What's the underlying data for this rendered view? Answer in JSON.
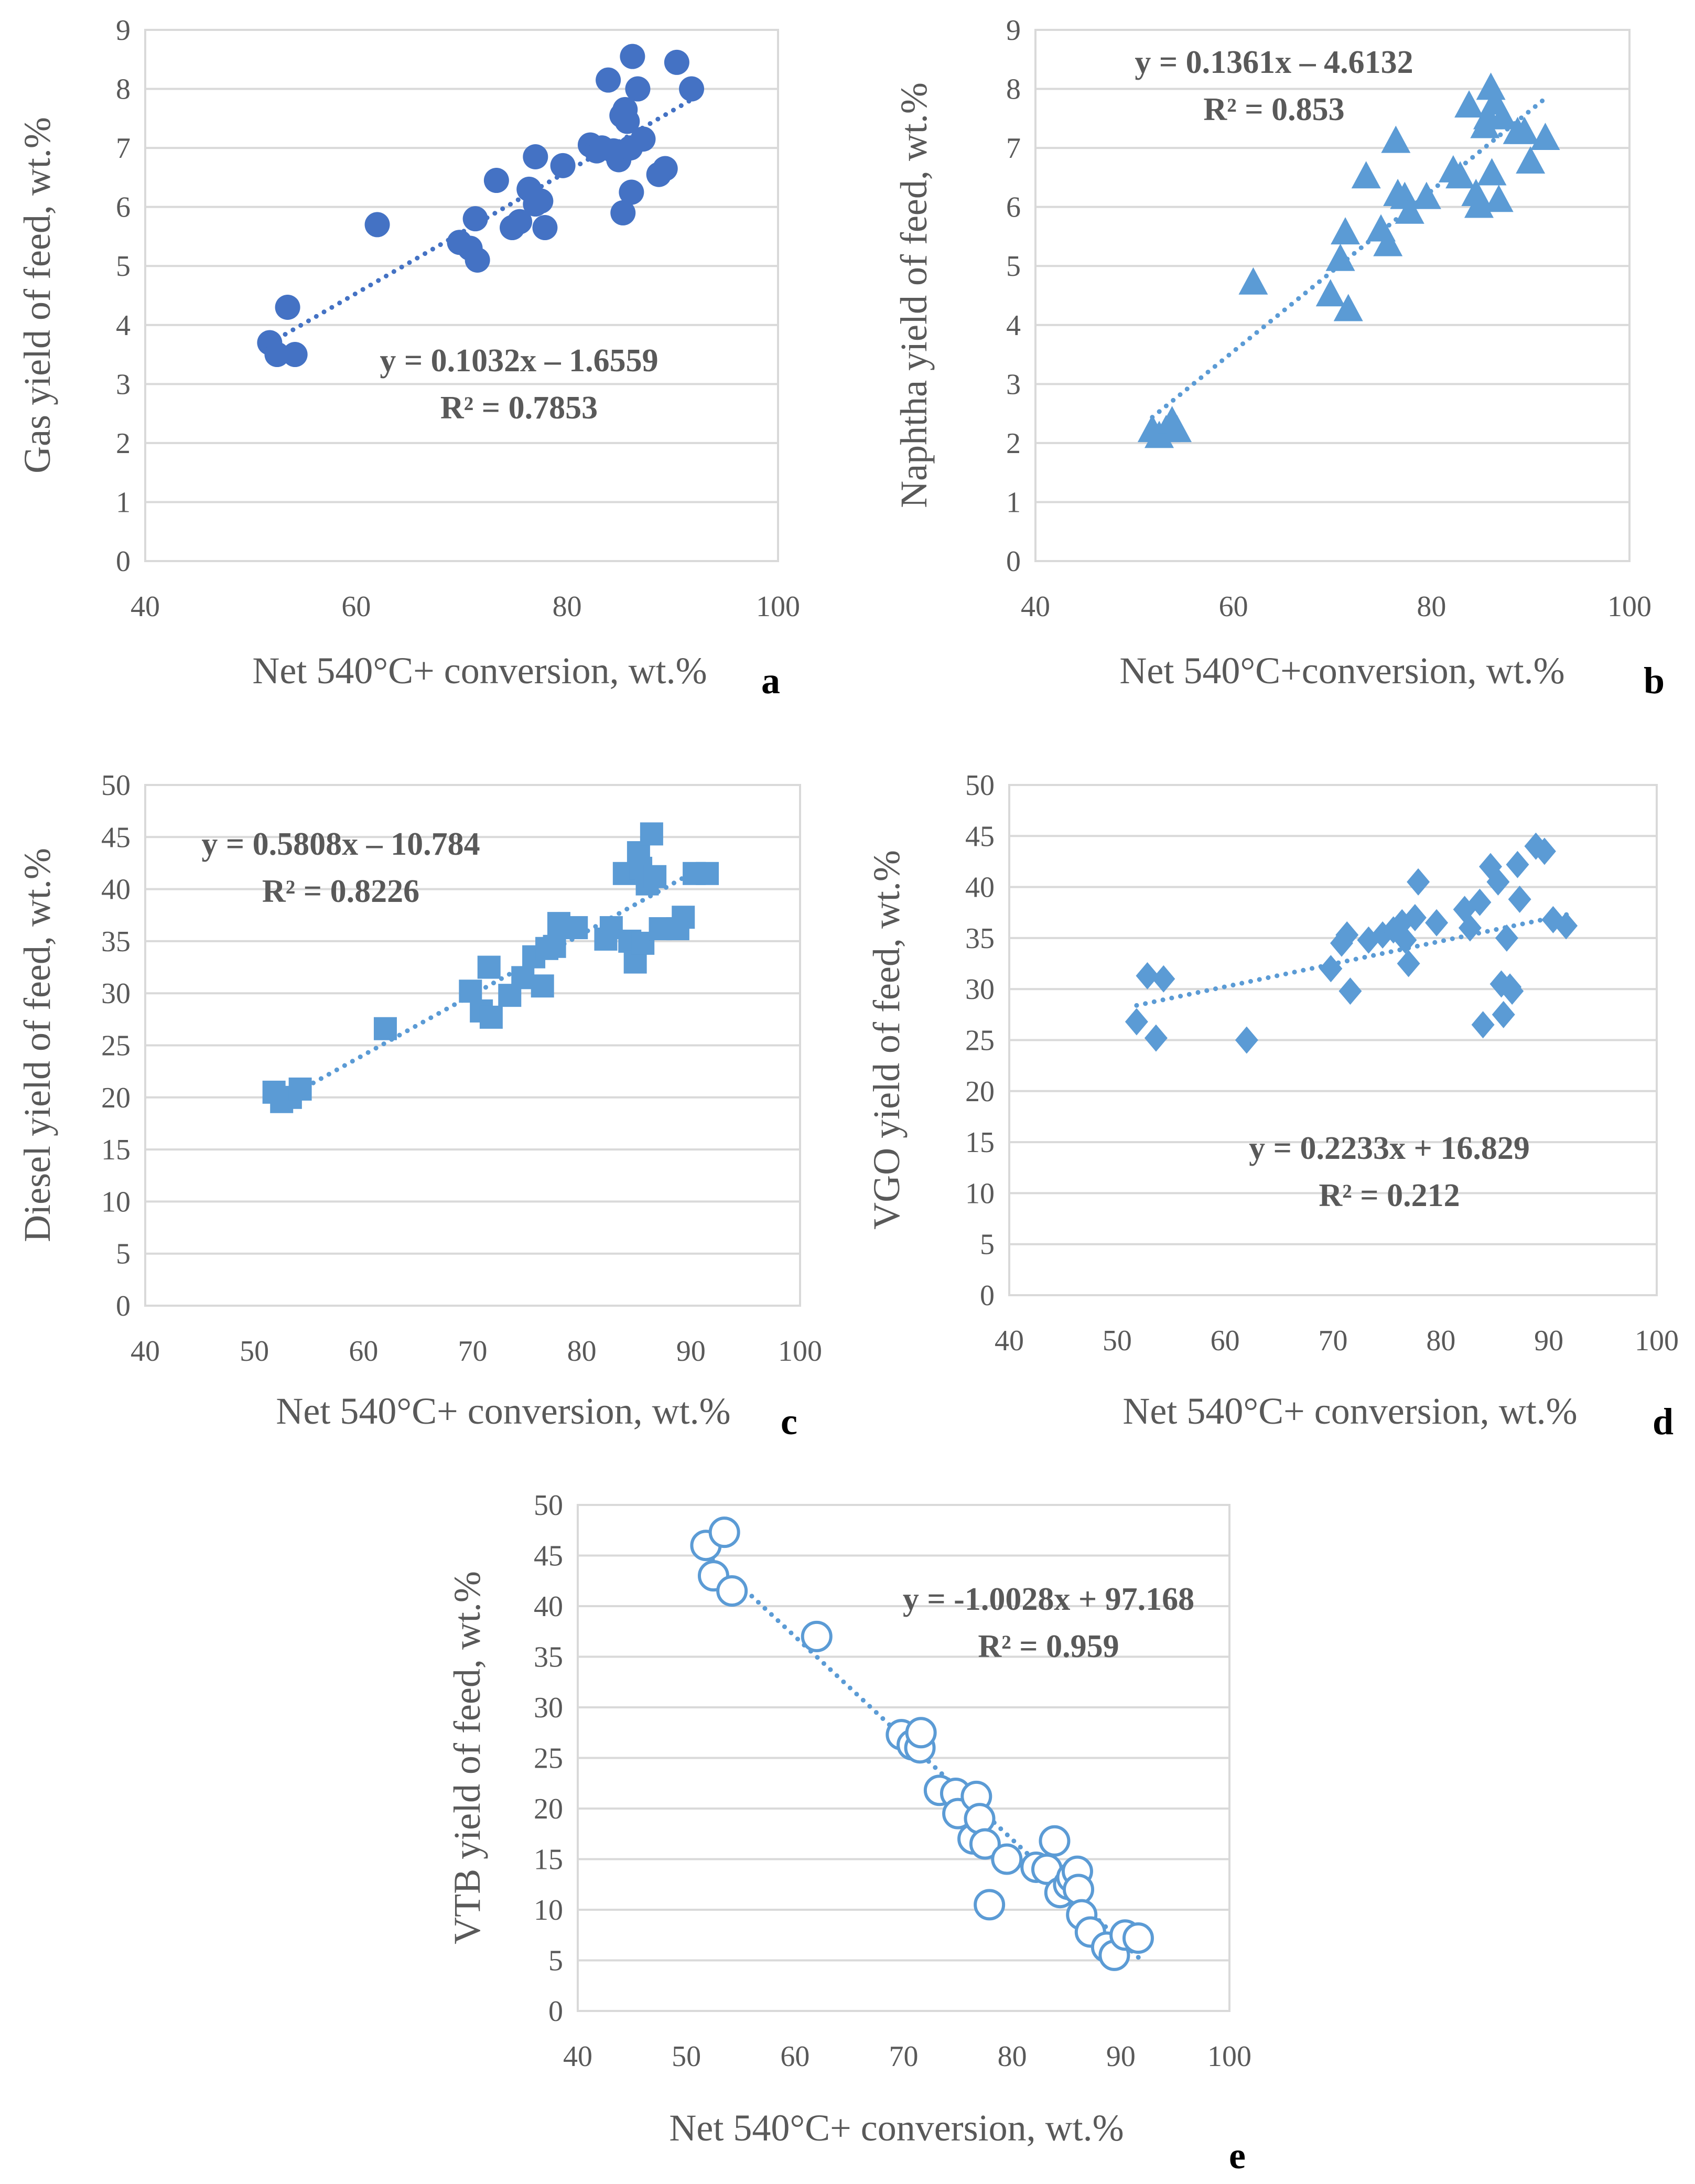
{
  "chart_data": [
    {
      "type": "scatter",
      "panel_label": "a",
      "xlabel": "Net 540°C+ conversion, wt.%",
      "ylabel": "Gas yield of feed, wt.%",
      "xlim": [
        40,
        100
      ],
      "ylim": [
        0,
        9
      ],
      "xticks": [
        40,
        60,
        80,
        100
      ],
      "yticks": [
        0,
        1,
        2,
        3,
        4,
        5,
        6,
        7,
        8,
        9
      ],
      "grid": "horizontal",
      "marker": "circle-filled",
      "color": "#4472C4",
      "trendline": {
        "slope": 0.1032,
        "intercept": -1.6559,
        "x_range": [
          51.8,
          91.8
        ]
      },
      "equation": "y = 0.1032x – 1.6559",
      "r2": "R² = 0.7853",
      "points": [
        [
          51.8,
          3.7
        ],
        [
          52.5,
          3.5
        ],
        [
          53.5,
          4.3
        ],
        [
          54.2,
          3.5
        ],
        [
          62,
          5.7
        ],
        [
          69.8,
          5.4
        ],
        [
          70.8,
          5.3
        ],
        [
          71.3,
          5.8
        ],
        [
          71.5,
          5.1
        ],
        [
          73.3,
          6.45
        ],
        [
          74.8,
          5.65
        ],
        [
          75.5,
          5.75
        ],
        [
          76.4,
          6.3
        ],
        [
          77.0,
          6.05
        ],
        [
          77.0,
          6.85
        ],
        [
          77.5,
          6.1
        ],
        [
          77.9,
          5.65
        ],
        [
          79.6,
          6.7
        ],
        [
          82.2,
          7.05
        ],
        [
          82.8,
          6.95
        ],
        [
          83.3,
          7.0
        ],
        [
          83.9,
          8.15
        ],
        [
          84.4,
          6.95
        ],
        [
          84.9,
          6.8
        ],
        [
          85.2,
          7.55
        ],
        [
          85.3,
          5.9
        ],
        [
          85.5,
          7.65
        ],
        [
          85.7,
          7.45
        ],
        [
          86.0,
          7.0
        ],
        [
          86.2,
          8.55
        ],
        [
          86.1,
          6.25
        ],
        [
          86.7,
          8.0
        ],
        [
          87.2,
          7.15
        ],
        [
          88.7,
          6.55
        ],
        [
          89.3,
          6.65
        ],
        [
          90.4,
          8.45
        ],
        [
          91.8,
          8.0
        ]
      ]
    },
    {
      "type": "scatter",
      "panel_label": "b",
      "xlabel": "Net 540°C+conversion, wt.%",
      "ylabel": "Naphtha yield of feed, wt.%",
      "xlim": [
        40,
        100
      ],
      "ylim": [
        0,
        9
      ],
      "xticks": [
        40,
        60,
        80,
        100
      ],
      "yticks": [
        0,
        1,
        2,
        3,
        4,
        5,
        6,
        7,
        8,
        9
      ],
      "grid": "horizontal",
      "marker": "triangle",
      "color": "#5B9BD5",
      "trendline": {
        "slope": 0.1361,
        "intercept": -4.6132,
        "x_range": [
          51.8,
          91.8
        ]
      },
      "equation": "y = 0.1361x – 4.6132",
      "r2": "R² = 0.853",
      "points": [
        [
          51.8,
          2.2
        ],
        [
          52.5,
          2.1
        ],
        [
          53.2,
          2.2
        ],
        [
          53.8,
          2.35
        ],
        [
          54.3,
          2.2
        ],
        [
          62,
          4.7
        ],
        [
          69.8,
          4.5
        ],
        [
          70.8,
          5.1
        ],
        [
          71.3,
          5.55
        ],
        [
          71.6,
          4.25
        ],
        [
          73.4,
          6.5
        ],
        [
          74.9,
          5.6
        ],
        [
          75.6,
          5.35
        ],
        [
          76.4,
          7.1
        ],
        [
          76.6,
          6.2
        ],
        [
          77.3,
          6.15
        ],
        [
          77.8,
          5.9
        ],
        [
          79.5,
          6.15
        ],
        [
          82.2,
          6.6
        ],
        [
          82.9,
          6.5
        ],
        [
          83.8,
          7.7
        ],
        [
          84.5,
          6.2
        ],
        [
          84.8,
          6.0
        ],
        [
          85.4,
          7.35
        ],
        [
          85.7,
          7.5
        ],
        [
          86.0,
          8.0
        ],
        [
          86.1,
          6.55
        ],
        [
          86.4,
          7.75
        ],
        [
          86.8,
          6.1
        ],
        [
          87.2,
          7.5
        ],
        [
          88.7,
          7.25
        ],
        [
          89.4,
          7.25
        ],
        [
          90.0,
          6.75
        ],
        [
          91.5,
          7.15
        ]
      ]
    },
    {
      "type": "scatter",
      "panel_label": "c",
      "xlabel": "Net 540°C+ conversion, wt.%",
      "ylabel": "Diesel yield of feed, wt.%",
      "xlim": [
        40,
        100
      ],
      "ylim": [
        0,
        50
      ],
      "xticks": [
        40,
        50,
        60,
        70,
        80,
        90,
        100
      ],
      "yticks": [
        0,
        5,
        10,
        15,
        20,
        25,
        30,
        35,
        40,
        45,
        50
      ],
      "grid": "horizontal",
      "marker": "square",
      "color": "#5B9BD5",
      "trendline": {
        "slope": 0.5808,
        "intercept": -10.784,
        "x_range": [
          51.8,
          91.8
        ]
      },
      "equation": "y = 0.5808x – 10.784",
      "r2": "R² = 0.8226",
      "points": [
        [
          51.8,
          20.5
        ],
        [
          52.5,
          19.6
        ],
        [
          53.3,
          20.0
        ],
        [
          54.2,
          20.8
        ],
        [
          62,
          26.6
        ],
        [
          69.8,
          30.2
        ],
        [
          70.8,
          28.3
        ],
        [
          71.5,
          32.5
        ],
        [
          71.7,
          27.7
        ],
        [
          73.4,
          29.8
        ],
        [
          74.6,
          31.5
        ],
        [
          75.6,
          33.5
        ],
        [
          76.4,
          30.7
        ],
        [
          76.8,
          34.3
        ],
        [
          77.5,
          34.5
        ],
        [
          77.9,
          36.7
        ],
        [
          79.5,
          36.3
        ],
        [
          82.2,
          35.2
        ],
        [
          82.7,
          36.3
        ],
        [
          83.9,
          41.5
        ],
        [
          84.4,
          35.0
        ],
        [
          84.9,
          33.0
        ],
        [
          85.2,
          43.5
        ],
        [
          85.4,
          42.0
        ],
        [
          85.6,
          34.8
        ],
        [
          86.0,
          40.5
        ],
        [
          86.4,
          45.3
        ],
        [
          86.7,
          41.2
        ],
        [
          87.2,
          36.2
        ],
        [
          88.8,
          36.2
        ],
        [
          89.3,
          37.3
        ],
        [
          90.3,
          41.5
        ],
        [
          91.5,
          41.5
        ]
      ]
    },
    {
      "type": "scatter",
      "panel_label": "d",
      "xlabel": "Net 540°C+ conversion, wt.%",
      "ylabel": "VGO yield of feed, wt.%",
      "xlim": [
        40,
        100
      ],
      "ylim": [
        0,
        50
      ],
      "xticks": [
        40,
        50,
        60,
        70,
        80,
        90,
        100
      ],
      "yticks": [
        0,
        5,
        10,
        15,
        20,
        25,
        30,
        35,
        40,
        45,
        50
      ],
      "grid": "horizontal",
      "marker": "diamond",
      "color": "#5B9BD5",
      "trendline": {
        "slope": 0.2233,
        "intercept": 16.829,
        "x_range": [
          51.8,
          91.8
        ]
      },
      "equation": "y = 0.2233x + 16.829",
      "r2": "R² = 0.212",
      "points": [
        [
          51.8,
          26.8
        ],
        [
          52.8,
          31.3
        ],
        [
          53.6,
          25.2
        ],
        [
          54.3,
          31.0
        ],
        [
          62,
          25.0
        ],
        [
          69.8,
          32.0
        ],
        [
          70.8,
          34.5
        ],
        [
          71.3,
          35.3
        ],
        [
          71.6,
          29.8
        ],
        [
          73.3,
          34.8
        ],
        [
          74.6,
          35.3
        ],
        [
          75.6,
          35.8
        ],
        [
          76.4,
          36.5
        ],
        [
          76.7,
          34.8
        ],
        [
          77.0,
          32.5
        ],
        [
          77.6,
          37.0
        ],
        [
          77.9,
          40.5
        ],
        [
          79.6,
          36.5
        ],
        [
          82.2,
          37.8
        ],
        [
          82.7,
          36.0
        ],
        [
          83.6,
          38.5
        ],
        [
          83.9,
          26.5
        ],
        [
          84.6,
          42.0
        ],
        [
          85.3,
          40.5
        ],
        [
          85.6,
          30.5
        ],
        [
          85.8,
          27.5
        ],
        [
          86.1,
          35.0
        ],
        [
          86.4,
          30.2
        ],
        [
          86.6,
          29.8
        ],
        [
          87.1,
          42.2
        ],
        [
          87.3,
          38.8
        ],
        [
          88.8,
          44.0
        ],
        [
          89.6,
          43.5
        ],
        [
          90.4,
          36.8
        ],
        [
          91.6,
          36.2
        ]
      ]
    },
    {
      "type": "scatter",
      "panel_label": "e",
      "xlabel": "Net 540°C+ conversion, wt.%",
      "ylabel": "VTB yield of feed, wt.%",
      "xlim": [
        40,
        100
      ],
      "ylim": [
        0,
        50
      ],
      "xticks": [
        40,
        50,
        60,
        70,
        80,
        90,
        100
      ],
      "yticks": [
        0,
        5,
        10,
        15,
        20,
        25,
        30,
        35,
        40,
        45,
        50
      ],
      "grid": "horizontal",
      "marker": "circle-open",
      "color": "#5B9BD5",
      "trendline": {
        "slope": -1.0028,
        "intercept": 97.168,
        "x_range": [
          51.8,
          91.8
        ]
      },
      "equation": "y = -1.0028x + 97.168",
      "r2": "R² = 0.959",
      "points": [
        [
          51.8,
          46.0
        ],
        [
          52.5,
          43.0
        ],
        [
          53.5,
          47.3
        ],
        [
          54.2,
          41.5
        ],
        [
          62,
          37.0
        ],
        [
          69.8,
          27.3
        ],
        [
          70.8,
          26.3
        ],
        [
          71.5,
          26.0
        ],
        [
          71.6,
          27.5
        ],
        [
          73.3,
          21.8
        ],
        [
          74.8,
          21.5
        ],
        [
          75.0,
          19.5
        ],
        [
          76.4,
          17.0
        ],
        [
          76.7,
          21.2
        ],
        [
          77.0,
          19.0
        ],
        [
          77.5,
          16.5
        ],
        [
          77.9,
          10.5
        ],
        [
          79.5,
          15.0
        ],
        [
          82.2,
          14.2
        ],
        [
          83.2,
          14.0
        ],
        [
          83.9,
          16.8
        ],
        [
          84.4,
          11.7
        ],
        [
          85.2,
          12.5
        ],
        [
          85.5,
          13.2
        ],
        [
          86.0,
          13.8
        ],
        [
          86.1,
          12.0
        ],
        [
          86.4,
          9.5
        ],
        [
          87.2,
          7.8
        ],
        [
          88.7,
          6.3
        ],
        [
          89.4,
          5.5
        ],
        [
          90.4,
          7.5
        ],
        [
          91.6,
          7.2
        ]
      ]
    }
  ]
}
